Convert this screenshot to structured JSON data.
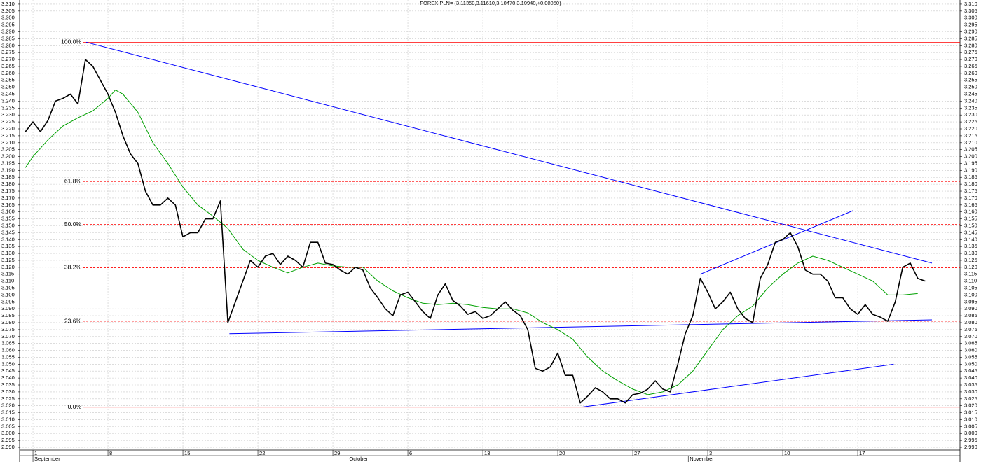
{
  "chart_data": {
    "type": "line",
    "title": "FOREX PLN= (3.11350,3.11610,3.10470,3.10940,+0.00050)",
    "xlim": [
      -0.89,
      61.82
    ],
    "ylim": [
      2.988,
      3.313
    ],
    "grid": true,
    "xticks": [
      {
        "value": 0,
        "label": "1"
      },
      {
        "value": 5,
        "label": "8"
      },
      {
        "value": 10,
        "label": "15"
      },
      {
        "value": 15,
        "label": "22"
      },
      {
        "value": 20,
        "label": "29"
      },
      {
        "value": 25,
        "label": "6"
      },
      {
        "value": 30,
        "label": "13"
      },
      {
        "value": 35,
        "label": "20"
      },
      {
        "value": 40,
        "label": "27"
      },
      {
        "value": 45,
        "label": "3"
      },
      {
        "value": 50,
        "label": "10"
      },
      {
        "value": 55,
        "label": "17"
      }
    ],
    "month_labels": [
      {
        "value": 0,
        "label": "September"
      },
      {
        "value": 21,
        "label": "October"
      },
      {
        "value": 43.7,
        "label": "November"
      }
    ],
    "yticks": [
      {
        "value": 2.99,
        "label": "2.990"
      },
      2.995,
      {
        "value": 3.0,
        "label": "3.000"
      },
      3.005,
      {
        "value": 3.01,
        "label": "3.010"
      },
      3.015,
      {
        "value": 3.02,
        "label": "3.020"
      },
      3.025,
      {
        "value": 3.03,
        "label": "3.030"
      },
      3.035,
      {
        "value": 3.04,
        "label": "3.040"
      },
      3.045,
      {
        "value": 3.05,
        "label": "3.050"
      },
      3.055,
      {
        "value": 3.06,
        "label": "3.060"
      },
      3.065,
      {
        "value": 3.07,
        "label": "3.070"
      },
      3.075,
      {
        "value": 3.08,
        "label": "3.080"
      },
      3.085,
      {
        "value": 3.09,
        "label": "3.090"
      },
      3.095,
      {
        "value": 3.1,
        "label": "3.100"
      },
      3.105,
      {
        "value": 3.11,
        "label": "3.110"
      },
      3.115,
      {
        "value": 3.12,
        "label": "3.120"
      },
      3.125,
      {
        "value": 3.13,
        "label": "3.130"
      },
      3.135,
      {
        "value": 3.14,
        "label": "3.140"
      },
      3.145,
      {
        "value": 3.15,
        "label": "3.150"
      },
      3.155,
      {
        "value": 3.16,
        "label": "3.160"
      },
      3.165,
      {
        "value": 3.17,
        "label": "3.170"
      },
      3.175,
      {
        "value": 3.18,
        "label": "3.180"
      },
      3.185,
      {
        "value": 3.19,
        "label": "3.190"
      },
      3.195,
      {
        "value": 3.2,
        "label": "3.200"
      },
      3.205,
      {
        "value": 3.21,
        "label": "3.210"
      },
      3.215,
      {
        "value": 3.22,
        "label": "3.220"
      },
      3.225,
      {
        "value": 3.23,
        "label": "3.230"
      },
      3.235,
      {
        "value": 3.24,
        "label": "3.240"
      },
      3.245,
      {
        "value": 3.25,
        "label": "3.250"
      },
      3.255,
      {
        "value": 3.26,
        "label": "3.260"
      },
      3.265,
      {
        "value": 3.27,
        "label": "3.270"
      },
      3.275,
      {
        "value": 3.28,
        "label": "3.280"
      },
      3.285,
      {
        "value": 3.29,
        "label": "3.290"
      },
      3.295,
      {
        "value": 3.3,
        "label": "3.300"
      },
      3.305,
      {
        "value": 3.31,
        "label": "3.310"
      }
    ],
    "series": [
      {
        "color": "#000000",
        "x": [
          -0.5,
          0,
          0.5,
          1,
          1.5,
          2,
          2.5,
          3,
          3.5,
          4,
          4.5,
          5,
          5.5,
          6,
          6.5,
          7,
          7.5,
          8,
          8.5,
          9,
          9.5,
          10,
          10.5,
          11,
          11.5,
          12,
          12.5,
          13,
          13.5,
          14,
          14.5,
          15,
          15.5,
          16,
          16.5,
          17,
          17.5,
          18,
          18.5,
          19,
          19.5,
          20,
          20.5,
          21,
          21.5,
          22,
          22.5,
          23,
          23.5,
          24,
          24.5,
          25,
          25.5,
          26,
          26.5,
          27,
          27.5,
          28,
          28.5,
          29,
          29.5,
          30,
          30.5,
          31,
          31.5,
          32,
          32.5,
          33,
          33.5,
          34,
          34.5,
          35,
          35.5,
          36,
          36.5,
          37,
          37.5,
          38,
          38.5,
          39,
          39.5,
          40,
          40.5,
          41,
          41.5,
          42,
          42.5,
          43,
          43.5,
          44,
          44.5,
          45,
          45.5,
          46,
          46.5,
          47,
          47.5,
          48,
          48.5,
          49,
          49.5,
          50,
          50.5,
          51,
          51.5,
          52,
          52.5,
          53,
          53.5,
          54,
          54.5,
          55,
          55.5,
          56,
          56.5,
          57,
          57.5,
          58,
          58.5,
          59,
          59.5
        ],
        "values": [
          3.218,
          3.225,
          3.218,
          3.226,
          3.24,
          3.242,
          3.245,
          3.238,
          3.27,
          3.265,
          3.255,
          3.245,
          3.232,
          3.215,
          3.202,
          3.195,
          3.175,
          3.165,
          3.165,
          3.17,
          3.165,
          3.142,
          3.145,
          3.145,
          3.155,
          3.155,
          3.168,
          3.08,
          3.095,
          3.11,
          3.125,
          3.12,
          3.128,
          3.13,
          3.122,
          3.128,
          3.125,
          3.12,
          3.138,
          3.138,
          3.123,
          3.122,
          3.118,
          3.115,
          3.12,
          3.118,
          3.105,
          3.098,
          3.09,
          3.085,
          3.1,
          3.102,
          3.095,
          3.088,
          3.083,
          3.1,
          3.108,
          3.096,
          3.092,
          3.086,
          3.088,
          3.083,
          3.085,
          3.09,
          3.095,
          3.089,
          3.085,
          3.075,
          3.047,
          3.045,
          3.048,
          3.058,
          3.042,
          3.042,
          3.022,
          3.027,
          3.033,
          3.03,
          3.025,
          3.025,
          3.022,
          3.028,
          3.029,
          3.032,
          3.038,
          3.032,
          3.03,
          3.05,
          3.072,
          3.085,
          3.112,
          3.102,
          3.09,
          3.095,
          3.102,
          3.09,
          3.083,
          3.08,
          3.112,
          3.122,
          3.138,
          3.14,
          3.145,
          3.135,
          3.118,
          3.115,
          3.115,
          3.11,
          3.098,
          3.098,
          3.09,
          3.086,
          3.093,
          3.086,
          3.084,
          3.081,
          3.095,
          3.12,
          3.123,
          3.112,
          3.11
        ]
      },
      {
        "color": "#00a000",
        "x": [
          -0.5,
          0,
          1,
          2,
          3,
          4,
          5,
          5.5,
          6,
          7,
          8,
          9,
          10,
          11,
          12,
          13,
          14,
          15,
          16,
          17,
          18,
          19,
          20,
          21,
          22,
          23,
          24,
          25,
          26,
          27,
          28,
          29,
          30,
          31,
          32,
          33,
          34,
          35,
          36,
          37,
          38,
          39,
          40,
          41,
          42,
          43,
          44,
          45,
          46,
          47,
          48,
          49,
          50,
          51,
          52,
          53,
          54,
          55,
          56,
          57,
          58,
          59
        ],
        "values": [
          3.192,
          3.2,
          3.212,
          3.222,
          3.228,
          3.233,
          3.242,
          3.248,
          3.245,
          3.232,
          3.21,
          3.195,
          3.178,
          3.165,
          3.157,
          3.148,
          3.133,
          3.125,
          3.12,
          3.116,
          3.12,
          3.123,
          3.121,
          3.12,
          3.12,
          3.11,
          3.103,
          3.098,
          3.094,
          3.093,
          3.094,
          3.093,
          3.091,
          3.09,
          3.09,
          3.087,
          3.08,
          3.075,
          3.068,
          3.055,
          3.045,
          3.038,
          3.032,
          3.028,
          3.03,
          3.035,
          3.045,
          3.06,
          3.075,
          3.085,
          3.092,
          3.105,
          3.115,
          3.123,
          3.128,
          3.125,
          3.12,
          3.115,
          3.11,
          3.1,
          3.1,
          3.101
        ]
      }
    ],
    "trendlines": {
      "color": "#0000ff",
      "lines": [
        {
          "x": [
            3.55,
            59.95
          ],
          "values": [
            3.2825,
            3.123
          ]
        },
        {
          "x": [
            13.1,
            59.95
          ],
          "values": [
            3.072,
            3.082
          ]
        },
        {
          "x": [
            36.6,
            57.4
          ],
          "values": [
            3.019,
            3.05
          ]
        },
        {
          "x": [
            44.5,
            54.7
          ],
          "values": [
            3.115,
            3.161
          ]
        }
      ]
    },
    "fib_levels": {
      "color": "#ff0000",
      "levels": [
        {
          "label": "100.0%",
          "value": 3.2825,
          "solid": true
        },
        {
          "label": "61.8%",
          "value": 3.182,
          "solid": false
        },
        {
          "label": "50.0%",
          "value": 3.151,
          "solid": false
        },
        {
          "label": "38.2%",
          "value": 3.1197,
          "solid": false
        },
        {
          "label": "23.6%",
          "value": 3.081,
          "solid": false
        },
        {
          "label": "0.0%",
          "value": 3.019,
          "solid": true
        }
      ]
    }
  }
}
